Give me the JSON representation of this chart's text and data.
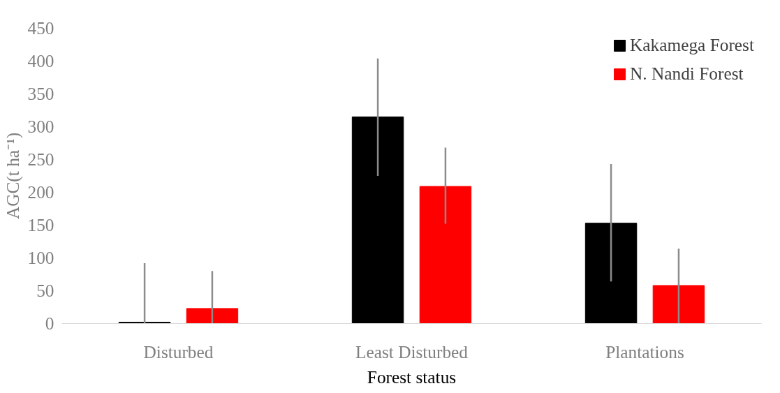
{
  "chart_data": {
    "type": "bar",
    "xlabel": "Forest status",
    "ylabel": "AGC(t ha⁻¹)",
    "categories": [
      "Disturbed",
      "Least Disturbed",
      "Plantations"
    ],
    "series": [
      {
        "name": "Kakamega Forest",
        "color": "#000000",
        "values": [
          2,
          315,
          153
        ],
        "errors": [
          [
            0,
            92
          ],
          [
            225,
            404
          ],
          [
            64,
            243
          ]
        ]
      },
      {
        "name": "N. Nandi Forest",
        "color": "#ff0000",
        "values": [
          23,
          209,
          58
        ],
        "errors": [
          [
            0,
            80
          ],
          [
            152,
            268
          ],
          [
            0,
            114
          ]
        ]
      }
    ],
    "ylim": [
      0,
      450
    ],
    "yticks": [
      0,
      50,
      100,
      150,
      200,
      250,
      300,
      350,
      400,
      450
    ],
    "grid": false,
    "legend": "top right"
  }
}
